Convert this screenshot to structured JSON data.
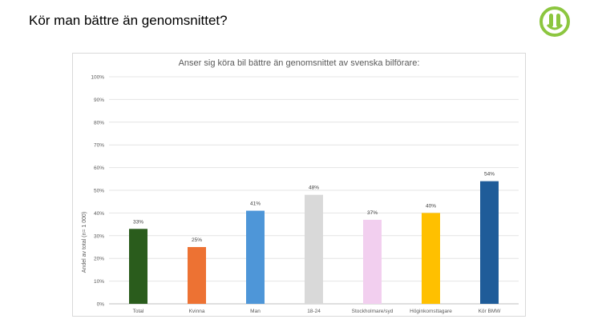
{
  "slide": {
    "title": "Kör man bättre än genomsnittet?"
  },
  "logo": {
    "icon": "company-logo-icon",
    "color": "#8cc63f"
  },
  "chart_data": {
    "type": "bar",
    "title": "Anser sig köra bil bättre än genomsnittet av svenska bilförare:",
    "ylabel": "Andel av total (n= 1 000)",
    "xlabel": "",
    "ylim": [
      0,
      100
    ],
    "yticks": [
      "0%",
      "10%",
      "20%",
      "30%",
      "40%",
      "50%",
      "60%",
      "70%",
      "80%",
      "90%",
      "100%"
    ],
    "grid": true,
    "categories": [
      "Total",
      "Kvinna",
      "Man",
      "18-24",
      "Stockholmare/syd",
      "Höginkomsttagare",
      "Kör BMW"
    ],
    "values": [
      33,
      25,
      41,
      48,
      37,
      40,
      54
    ],
    "value_labels": [
      "33%",
      "25%",
      "41%",
      "48%",
      "37%",
      "40%",
      "54%"
    ],
    "colors": [
      "#2a5c1c",
      "#ed7233",
      "#4e96d8",
      "#d9d9d9",
      "#f2cfef",
      "#ffc000",
      "#1f5c99"
    ]
  }
}
